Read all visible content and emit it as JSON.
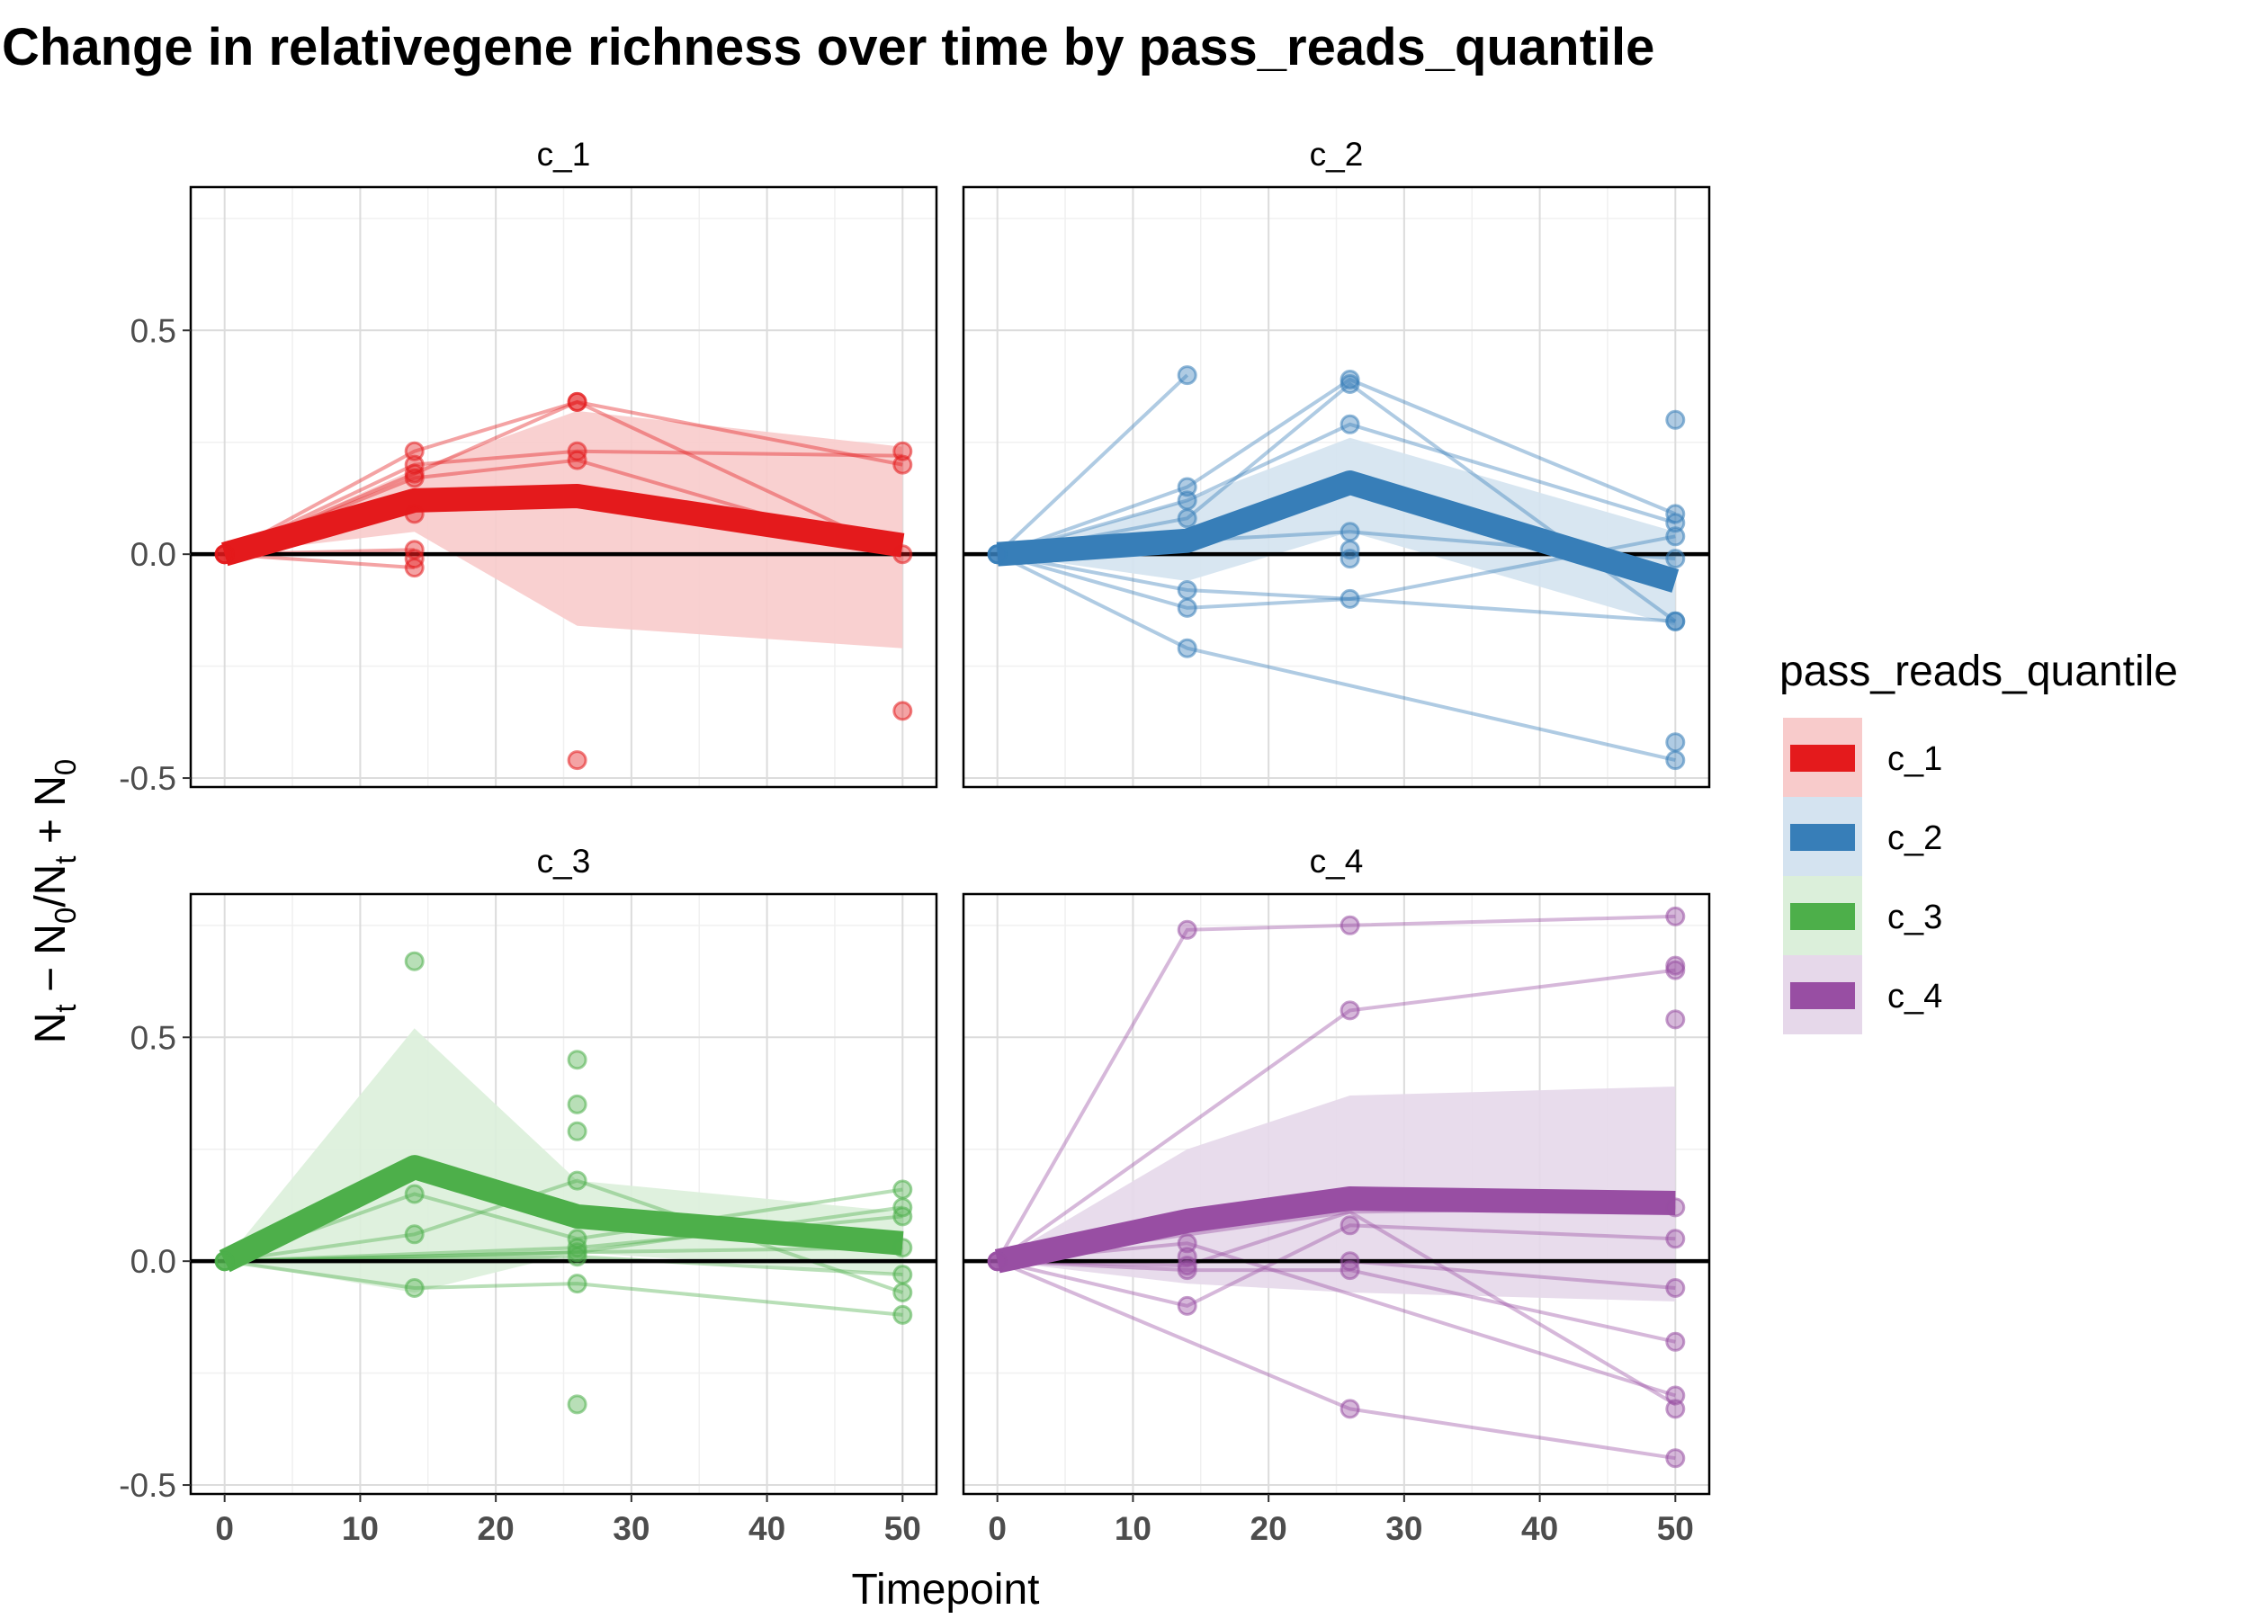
{
  "chart_data": {
    "type": "line",
    "title": "Change in relativegene richness over time by pass_reads_quantile",
    "xlabel": "Timepoint",
    "ylabel_parts": [
      "N",
      "t",
      " − N",
      "0",
      "/N",
      "t",
      " + N",
      "0"
    ],
    "xlim": [
      -2.5,
      52.5
    ],
    "ylim": [
      -0.52,
      0.82
    ],
    "x_ticks": [
      0,
      10,
      20,
      30,
      40,
      50
    ],
    "x_tick_labels": [
      "0",
      "10",
      "20",
      "30",
      "40",
      "50"
    ],
    "y_ticks": [
      -0.5,
      0.0,
      0.5
    ],
    "y_tick_labels": [
      "-0.5",
      "0.0",
      "0.5"
    ],
    "reference_line_y": 0,
    "grid": true,
    "legend": {
      "title": "pass_reads_quantile",
      "placement": "right",
      "entries": [
        "c_1",
        "c_2",
        "c_3",
        "c_4"
      ]
    },
    "panels": [
      {
        "name": "c_1",
        "color": "#E41A1C",
        "ribbon_color": "#F8CBCB",
        "mean": [
          {
            "x": 0,
            "y": 0.0
          },
          {
            "x": 14,
            "y": 0.12
          },
          {
            "x": 26,
            "y": 0.13
          },
          {
            "x": 50,
            "y": 0.02
          }
        ],
        "ribbon": [
          {
            "x": 0,
            "lo": 0.0,
            "hi": 0.0
          },
          {
            "x": 14,
            "lo": 0.05,
            "hi": 0.19
          },
          {
            "x": 26,
            "lo": -0.16,
            "hi": 0.32
          },
          {
            "x": 50,
            "lo": -0.21,
            "hi": 0.24
          }
        ],
        "lines": [
          [
            {
              "x": 0,
              "y": 0
            },
            {
              "x": 14,
              "y": 0.23
            },
            {
              "x": 26,
              "y": 0.34
            },
            {
              "x": 50,
              "y": 0.2
            }
          ],
          [
            {
              "x": 0,
              "y": 0
            },
            {
              "x": 14,
              "y": 0.18
            },
            {
              "x": 26,
              "y": 0.34
            },
            {
              "x": 50,
              "y": 0.0
            }
          ],
          [
            {
              "x": 0,
              "y": 0
            },
            {
              "x": 14,
              "y": 0.2
            },
            {
              "x": 26,
              "y": 0.23
            },
            {
              "x": 50,
              "y": 0.22
            }
          ],
          [
            {
              "x": 0,
              "y": 0
            },
            {
              "x": 14,
              "y": 0.17
            },
            {
              "x": 26,
              "y": 0.21
            },
            {
              "x": 50,
              "y": 0.0
            }
          ],
          [
            {
              "x": 0,
              "y": 0
            },
            {
              "x": 14,
              "y": 0.01
            }
          ],
          [
            {
              "x": 0,
              "y": 0
            },
            {
              "x": 14,
              "y": -0.03
            }
          ]
        ],
        "points": [
          {
            "x": 0,
            "y": 0
          },
          {
            "x": 0,
            "y": 0
          },
          {
            "x": 0,
            "y": 0
          },
          {
            "x": 0,
            "y": 0
          },
          {
            "x": 14,
            "y": 0.23
          },
          {
            "x": 14,
            "y": 0.2
          },
          {
            "x": 14,
            "y": 0.18
          },
          {
            "x": 14,
            "y": 0.17
          },
          {
            "x": 14,
            "y": 0.09
          },
          {
            "x": 14,
            "y": 0.01
          },
          {
            "x": 14,
            "y": -0.01
          },
          {
            "x": 14,
            "y": -0.03
          },
          {
            "x": 26,
            "y": 0.34
          },
          {
            "x": 26,
            "y": 0.34
          },
          {
            "x": 26,
            "y": 0.23
          },
          {
            "x": 26,
            "y": 0.21
          },
          {
            "x": 26,
            "y": -0.46
          },
          {
            "x": 50,
            "y": 0.23
          },
          {
            "x": 50,
            "y": 0.2
          },
          {
            "x": 50,
            "y": 0.0
          },
          {
            "x": 50,
            "y": -0.35
          }
        ]
      },
      {
        "name": "c_2",
        "color": "#377EB8",
        "ribbon_color": "#D4E3F0",
        "mean": [
          {
            "x": 0,
            "y": 0.0
          },
          {
            "x": 14,
            "y": 0.03
          },
          {
            "x": 26,
            "y": 0.16
          },
          {
            "x": 50,
            "y": -0.06
          }
        ],
        "ribbon": [
          {
            "x": 0,
            "lo": 0.0,
            "hi": 0.0
          },
          {
            "x": 14,
            "lo": -0.06,
            "hi": 0.12
          },
          {
            "x": 26,
            "lo": 0.05,
            "hi": 0.26
          },
          {
            "x": 50,
            "lo": -0.16,
            "hi": 0.05
          }
        ],
        "lines": [
          [
            {
              "x": 0,
              "y": 0
            },
            {
              "x": 14,
              "y": 0.4
            }
          ],
          [
            {
              "x": 0,
              "y": 0
            },
            {
              "x": 14,
              "y": 0.15
            },
            {
              "x": 26,
              "y": 0.39
            },
            {
              "x": 50,
              "y": 0.09
            }
          ],
          [
            {
              "x": 0,
              "y": 0
            },
            {
              "x": 14,
              "y": 0.08
            },
            {
              "x": 26,
              "y": 0.38
            },
            {
              "x": 50,
              "y": -0.15
            }
          ],
          [
            {
              "x": 0,
              "y": 0
            },
            {
              "x": 14,
              "y": 0.12
            },
            {
              "x": 26,
              "y": 0.29
            },
            {
              "x": 50,
              "y": 0.07
            }
          ],
          [
            {
              "x": 0,
              "y": 0
            },
            {
              "x": 14,
              "y": 0.03
            },
            {
              "x": 26,
              "y": 0.05
            },
            {
              "x": 50,
              "y": -0.01
            }
          ],
          [
            {
              "x": 0,
              "y": 0
            },
            {
              "x": 14,
              "y": -0.08
            },
            {
              "x": 26,
              "y": -0.1
            },
            {
              "x": 50,
              "y": -0.15
            }
          ],
          [
            {
              "x": 0,
              "y": 0
            },
            {
              "x": 14,
              "y": -0.12
            },
            {
              "x": 26,
              "y": -0.1
            },
            {
              "x": 50,
              "y": 0.04
            }
          ],
          [
            {
              "x": 0,
              "y": 0
            },
            {
              "x": 14,
              "y": -0.21
            },
            {
              "x": 50,
              "y": -0.46
            }
          ]
        ],
        "points": [
          {
            "x": 0,
            "y": 0
          },
          {
            "x": 0,
            "y": 0
          },
          {
            "x": 0,
            "y": 0
          },
          {
            "x": 0,
            "y": 0
          },
          {
            "x": 14,
            "y": 0.4
          },
          {
            "x": 14,
            "y": 0.15
          },
          {
            "x": 14,
            "y": 0.12
          },
          {
            "x": 14,
            "y": 0.08
          },
          {
            "x": 14,
            "y": -0.08
          },
          {
            "x": 14,
            "y": -0.12
          },
          {
            "x": 14,
            "y": -0.21
          },
          {
            "x": 26,
            "y": 0.39
          },
          {
            "x": 26,
            "y": 0.38
          },
          {
            "x": 26,
            "y": 0.29
          },
          {
            "x": 26,
            "y": 0.05
          },
          {
            "x": 26,
            "y": 0.01
          },
          {
            "x": 26,
            "y": -0.01
          },
          {
            "x": 26,
            "y": -0.1
          },
          {
            "x": 50,
            "y": 0.3
          },
          {
            "x": 50,
            "y": 0.09
          },
          {
            "x": 50,
            "y": 0.07
          },
          {
            "x": 50,
            "y": 0.04
          },
          {
            "x": 50,
            "y": -0.01
          },
          {
            "x": 50,
            "y": -0.15
          },
          {
            "x": 50,
            "y": -0.15
          },
          {
            "x": 50,
            "y": -0.42
          },
          {
            "x": 50,
            "y": -0.46
          }
        ]
      },
      {
        "name": "c_3",
        "color": "#4DAF4A",
        "ribbon_color": "#DBEFDA",
        "mean": [
          {
            "x": 0,
            "y": 0.0
          },
          {
            "x": 14,
            "y": 0.21
          },
          {
            "x": 26,
            "y": 0.1
          },
          {
            "x": 50,
            "y": 0.04
          }
        ],
        "ribbon": [
          {
            "x": 0,
            "lo": 0.0,
            "hi": 0.0
          },
          {
            "x": 14,
            "lo": -0.07,
            "hi": 0.52
          },
          {
            "x": 26,
            "lo": 0.02,
            "hi": 0.18
          },
          {
            "x": 50,
            "lo": -0.03,
            "hi": 0.11
          }
        ],
        "lines": [
          [
            {
              "x": 0,
              "y": 0
            },
            {
              "x": 14,
              "y": -0.06
            },
            {
              "x": 26,
              "y": -0.05
            },
            {
              "x": 50,
              "y": -0.12
            }
          ],
          [
            {
              "x": 0,
              "y": 0
            },
            {
              "x": 14,
              "y": 0.06
            },
            {
              "x": 26,
              "y": 0.18
            },
            {
              "x": 50,
              "y": -0.07
            }
          ],
          [
            {
              "x": 0,
              "y": 0
            },
            {
              "x": 14,
              "y": 0.15
            },
            {
              "x": 26,
              "y": 0.05
            },
            {
              "x": 50,
              "y": 0.16
            }
          ],
          [
            {
              "x": 0,
              "y": 0
            },
            {
              "x": 26,
              "y": 0.02
            },
            {
              "x": 50,
              "y": 0.12
            }
          ],
          [
            {
              "x": 0,
              "y": 0
            },
            {
              "x": 26,
              "y": 0.03
            },
            {
              "x": 50,
              "y": 0.1
            }
          ],
          [
            {
              "x": 0,
              "y": 0
            },
            {
              "x": 26,
              "y": 0.01
            },
            {
              "x": 50,
              "y": -0.03
            }
          ],
          [
            {
              "x": 0,
              "y": 0
            },
            {
              "x": 26,
              "y": 0.02
            },
            {
              "x": 50,
              "y": 0.03
            }
          ]
        ],
        "points": [
          {
            "x": 0,
            "y": 0
          },
          {
            "x": 0,
            "y": 0
          },
          {
            "x": 0,
            "y": 0
          },
          {
            "x": 0,
            "y": 0
          },
          {
            "x": 14,
            "y": 0.67
          },
          {
            "x": 14,
            "y": 0.15
          },
          {
            "x": 14,
            "y": 0.06
          },
          {
            "x": 14,
            "y": -0.06
          },
          {
            "x": 26,
            "y": 0.45
          },
          {
            "x": 26,
            "y": 0.35
          },
          {
            "x": 26,
            "y": 0.29
          },
          {
            "x": 26,
            "y": 0.18
          },
          {
            "x": 26,
            "y": 0.05
          },
          {
            "x": 26,
            "y": 0.03
          },
          {
            "x": 26,
            "y": 0.02
          },
          {
            "x": 26,
            "y": 0.01
          },
          {
            "x": 26,
            "y": -0.05
          },
          {
            "x": 26,
            "y": -0.32
          },
          {
            "x": 50,
            "y": 0.16
          },
          {
            "x": 50,
            "y": 0.12
          },
          {
            "x": 50,
            "y": 0.1
          },
          {
            "x": 50,
            "y": 0.03
          },
          {
            "x": 50,
            "y": -0.03
          },
          {
            "x": 50,
            "y": -0.07
          },
          {
            "x": 50,
            "y": -0.12
          }
        ]
      },
      {
        "name": "c_4",
        "color": "#984EA3",
        "ribbon_color": "#E6D8EA",
        "mean": [
          {
            "x": 0,
            "y": 0.0
          },
          {
            "x": 14,
            "y": 0.09
          },
          {
            "x": 26,
            "y": 0.14
          },
          {
            "x": 50,
            "y": 0.13
          }
        ],
        "ribbon": [
          {
            "x": 0,
            "lo": 0.0,
            "hi": 0.0
          },
          {
            "x": 14,
            "lo": -0.05,
            "hi": 0.25
          },
          {
            "x": 26,
            "lo": -0.07,
            "hi": 0.37
          },
          {
            "x": 50,
            "lo": -0.09,
            "hi": 0.39
          }
        ],
        "lines": [
          [
            {
              "x": 0,
              "y": 0
            },
            {
              "x": 14,
              "y": 0.74
            },
            {
              "x": 26,
              "y": 0.75
            },
            {
              "x": 50,
              "y": 0.77
            }
          ],
          [
            {
              "x": 0,
              "y": 0
            },
            {
              "x": 26,
              "y": 0.56
            },
            {
              "x": 50,
              "y": 0.65
            }
          ],
          [
            {
              "x": 0,
              "y": 0
            },
            {
              "x": 26,
              "y": 0.11
            },
            {
              "x": 50,
              "y": 0.12
            }
          ],
          [
            {
              "x": 0,
              "y": 0
            },
            {
              "x": 14,
              "y": -0.1
            },
            {
              "x": 26,
              "y": 0.08
            },
            {
              "x": 50,
              "y": 0.05
            }
          ],
          [
            {
              "x": 0,
              "y": 0
            },
            {
              "x": 14,
              "y": 0.0
            },
            {
              "x": 26,
              "y": 0.0
            },
            {
              "x": 50,
              "y": -0.06
            }
          ],
          [
            {
              "x": 0,
              "y": 0
            },
            {
              "x": 14,
              "y": -0.02
            },
            {
              "x": 26,
              "y": -0.02
            },
            {
              "x": 50,
              "y": -0.18
            }
          ],
          [
            {
              "x": 0,
              "y": 0
            },
            {
              "x": 14,
              "y": -0.01
            },
            {
              "x": 26,
              "y": 0.11
            },
            {
              "x": 50,
              "y": -0.32
            }
          ],
          [
            {
              "x": 0,
              "y": 0
            },
            {
              "x": 26,
              "y": -0.33
            },
            {
              "x": 50,
              "y": -0.44
            }
          ],
          [
            {
              "x": 0,
              "y": 0
            },
            {
              "x": 14,
              "y": 0.04
            },
            {
              "x": 50,
              "y": -0.3
            }
          ]
        ],
        "points": [
          {
            "x": 0,
            "y": 0
          },
          {
            "x": 0,
            "y": 0
          },
          {
            "x": 0,
            "y": 0
          },
          {
            "x": 0,
            "y": 0
          },
          {
            "x": 14,
            "y": 0.74
          },
          {
            "x": 14,
            "y": 0.04
          },
          {
            "x": 14,
            "y": 0.01
          },
          {
            "x": 14,
            "y": -0.01
          },
          {
            "x": 14,
            "y": -0.02
          },
          {
            "x": 14,
            "y": -0.1
          },
          {
            "x": 26,
            "y": 0.75
          },
          {
            "x": 26,
            "y": 0.56
          },
          {
            "x": 26,
            "y": 0.08
          },
          {
            "x": 26,
            "y": 0.0
          },
          {
            "x": 26,
            "y": -0.02
          },
          {
            "x": 26,
            "y": -0.33
          },
          {
            "x": 50,
            "y": 0.77
          },
          {
            "x": 50,
            "y": 0.66
          },
          {
            "x": 50,
            "y": 0.65
          },
          {
            "x": 50,
            "y": 0.54
          },
          {
            "x": 50,
            "y": 0.12
          },
          {
            "x": 50,
            "y": 0.05
          },
          {
            "x": 50,
            "y": -0.06
          },
          {
            "x": 50,
            "y": -0.18
          },
          {
            "x": 50,
            "y": -0.3
          },
          {
            "x": 50,
            "y": -0.33
          },
          {
            "x": 50,
            "y": -0.44
          }
        ]
      }
    ]
  }
}
